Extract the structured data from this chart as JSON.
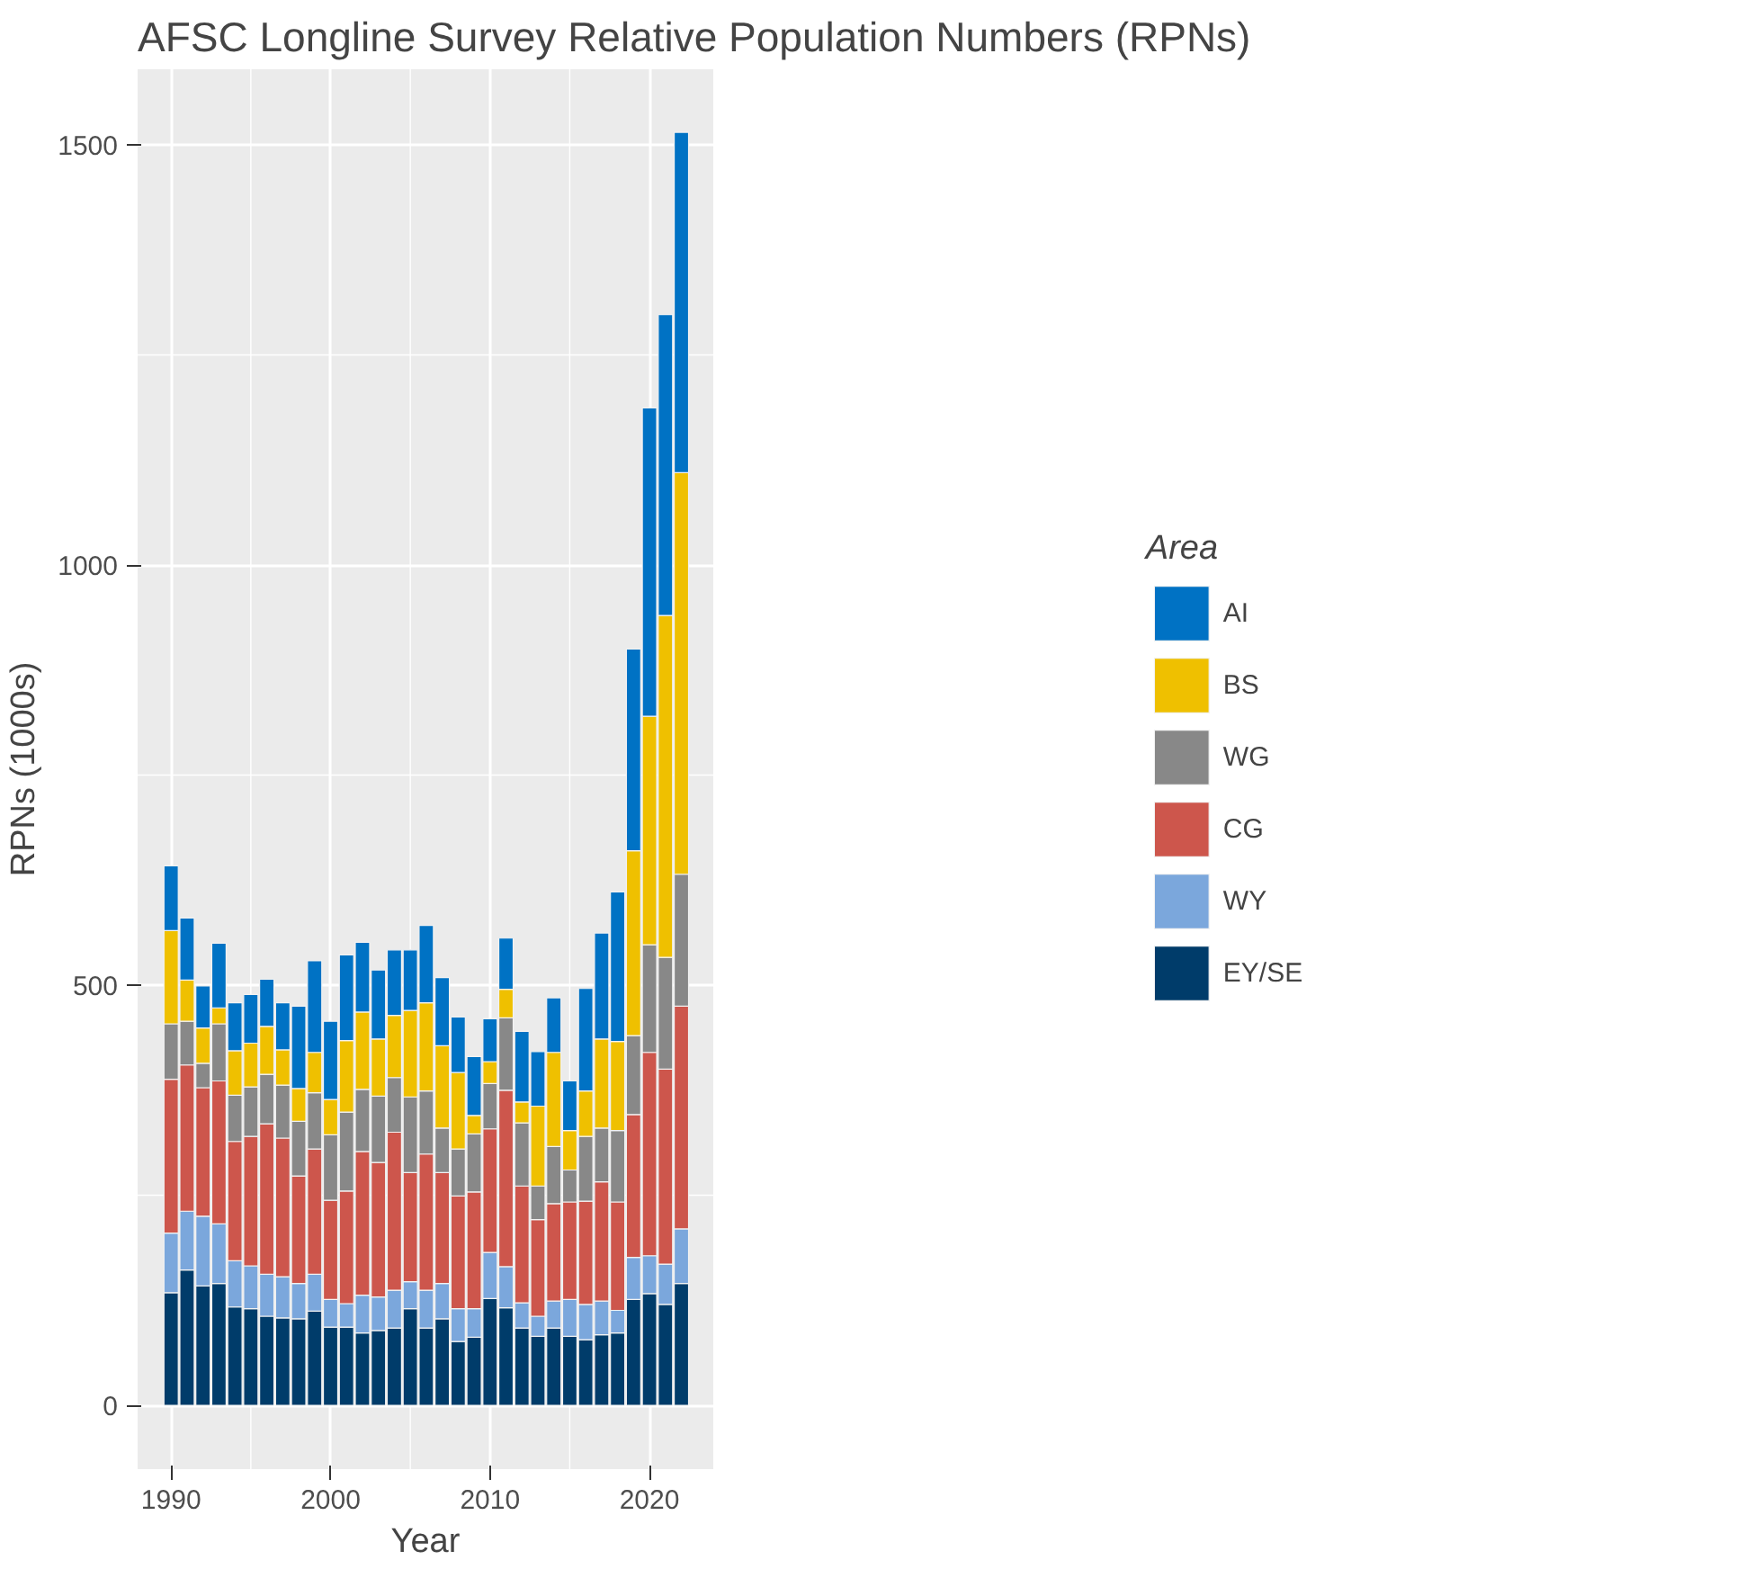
{
  "chart_data": {
    "type": "bar",
    "stacked": true,
    "title": "AFSC Longline Survey Relative Population Numbers (RPNs)",
    "xlabel": "Year",
    "ylabel": "RPNs (1000s)",
    "legend_title": "Area",
    "legend": "right",
    "grid": true,
    "x": [
      1990,
      1991,
      1992,
      1993,
      1994,
      1995,
      1996,
      1997,
      1998,
      1999,
      2000,
      2001,
      2002,
      2003,
      2004,
      2005,
      2006,
      2007,
      2008,
      2009,
      2010,
      2011,
      2012,
      2013,
      2014,
      2015,
      2016,
      2017,
      2018,
      2019,
      2020,
      2021,
      2022
    ],
    "xlim": [
      1987.9,
      2024.0
    ],
    "xticks": [
      1990,
      2000,
      2010,
      2020
    ],
    "ylim": [
      -76,
      1590
    ],
    "yticks": [
      0,
      500,
      1000,
      1500
    ],
    "series": [
      {
        "name": "EY/SE",
        "color": "#003c6a",
        "values": [
          134,
          161,
          142,
          145,
          117,
          115,
          106,
          104,
          103,
          112,
          93,
          93,
          86,
          89,
          92,
          115,
          92,
          103,
          76,
          81,
          127,
          116,
          92,
          82,
          92,
          82,
          78,
          84,
          86,
          126,
          133,
          120,
          145
        ]
      },
      {
        "name": "WY",
        "color": "#7ba7dc",
        "values": [
          71,
          70,
          83,
          71,
          55,
          51,
          50,
          49,
          42,
          44,
          33,
          28,
          45,
          40,
          45,
          32,
          45,
          42,
          39,
          34,
          55,
          49,
          30,
          24,
          32,
          44,
          42,
          40,
          27,
          50,
          45,
          48,
          65
        ]
      },
      {
        "name": "CG",
        "color": "#cd564c",
        "values": [
          183,
          174,
          153,
          170,
          142,
          154,
          179,
          165,
          128,
          149,
          118,
          134,
          171,
          160,
          188,
          130,
          162,
          132,
          134,
          139,
          147,
          210,
          139,
          115,
          116,
          116,
          123,
          142,
          129,
          170,
          242,
          232,
          265
        ]
      },
      {
        "name": "WG",
        "color": "#888888",
        "values": [
          66,
          52,
          29,
          68,
          55,
          59,
          59,
          63,
          65,
          67,
          78,
          94,
          74,
          79,
          65,
          90,
          75,
          53,
          56,
          69,
          54,
          86,
          75,
          40,
          68,
          38,
          77,
          64,
          85,
          94,
          128,
          133,
          157
        ]
      },
      {
        "name": "BS",
        "color": "#efc000",
        "values": [
          111,
          49,
          42,
          19,
          53,
          52,
          57,
          42,
          39,
          48,
          42,
          85,
          92,
          68,
          74,
          103,
          105,
          98,
          91,
          22,
          26,
          34,
          25,
          95,
          112,
          47,
          54,
          106,
          106,
          220,
          272,
          407,
          478
        ]
      },
      {
        "name": "AI",
        "color": "#0072c4",
        "values": [
          77,
          74,
          50,
          77,
          57,
          58,
          56,
          56,
          98,
          109,
          93,
          102,
          83,
          82,
          78,
          72,
          92,
          81,
          66,
          70,
          51,
          61,
          84,
          65,
          65,
          59,
          122,
          126,
          178,
          240,
          367,
          358,
          405
        ]
      }
    ]
  }
}
